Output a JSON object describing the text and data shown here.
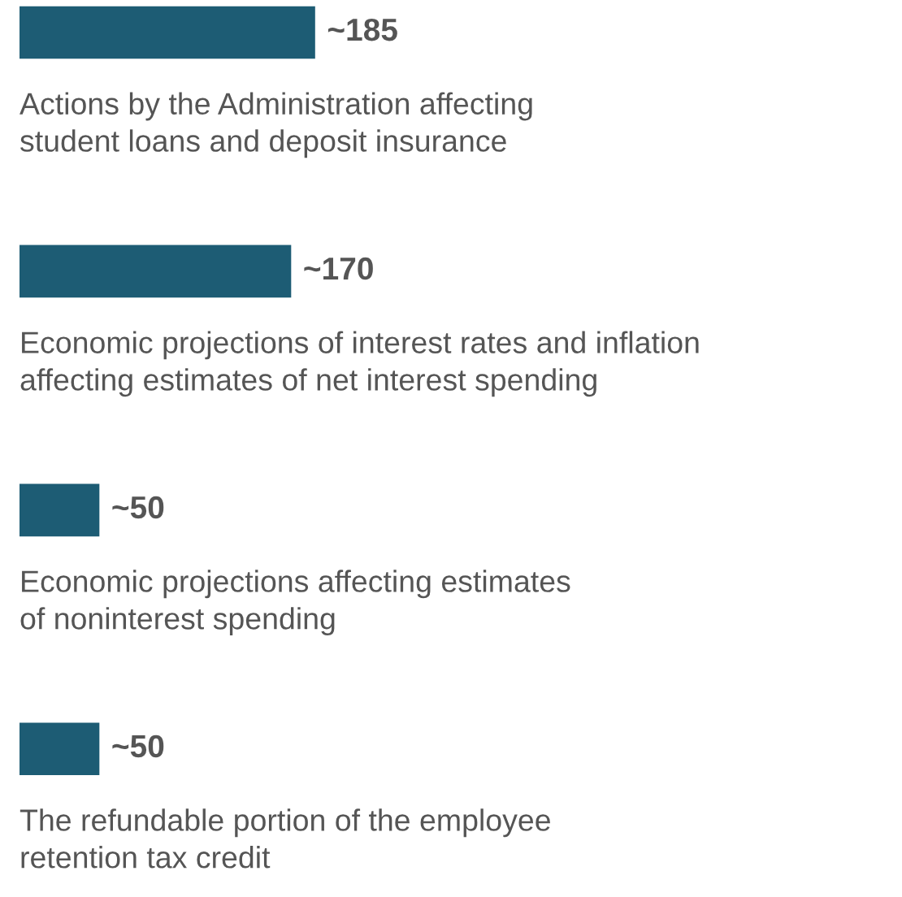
{
  "chart_data": {
    "type": "bar",
    "orientation": "horizontal",
    "tick_labels": false,
    "categories": [
      "Actions by the Administration affecting\nstudent loans and deposit insurance",
      "Economic projections of interest rates and inflation\naffecting estimates of net interest spending",
      "Economic projections affecting estimates\nof noninterest spending",
      "The refundable portion of the employee\nretention tax credit"
    ],
    "values": [
      185,
      170,
      50,
      50
    ],
    "value_labels": [
      "~185",
      "~170",
      "~50",
      "~50"
    ],
    "color": "#1d5c74"
  }
}
